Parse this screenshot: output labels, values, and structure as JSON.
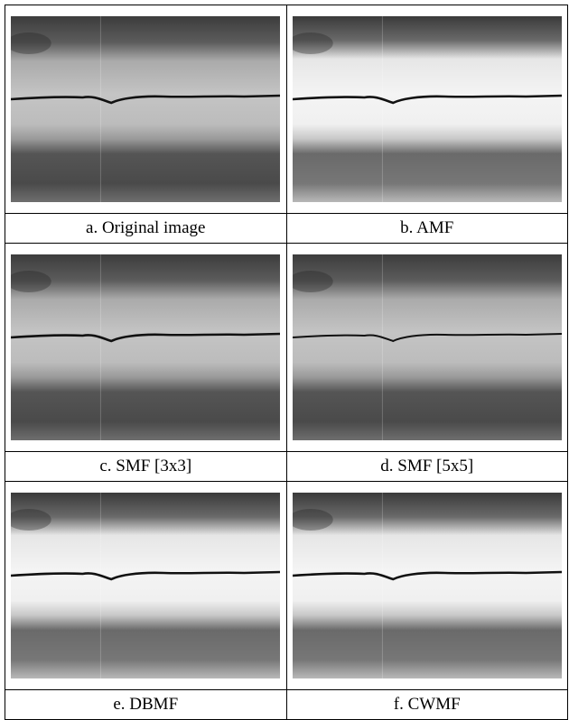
{
  "figure": {
    "panels": [
      {
        "caption": "a. Original image"
      },
      {
        "caption": "b. AMF"
      },
      {
        "caption": "c. SMF [3x3]"
      },
      {
        "caption": "d. SMF [5x5]"
      },
      {
        "caption": "e. DBMF"
      },
      {
        "caption": "f. CWMF"
      }
    ]
  }
}
